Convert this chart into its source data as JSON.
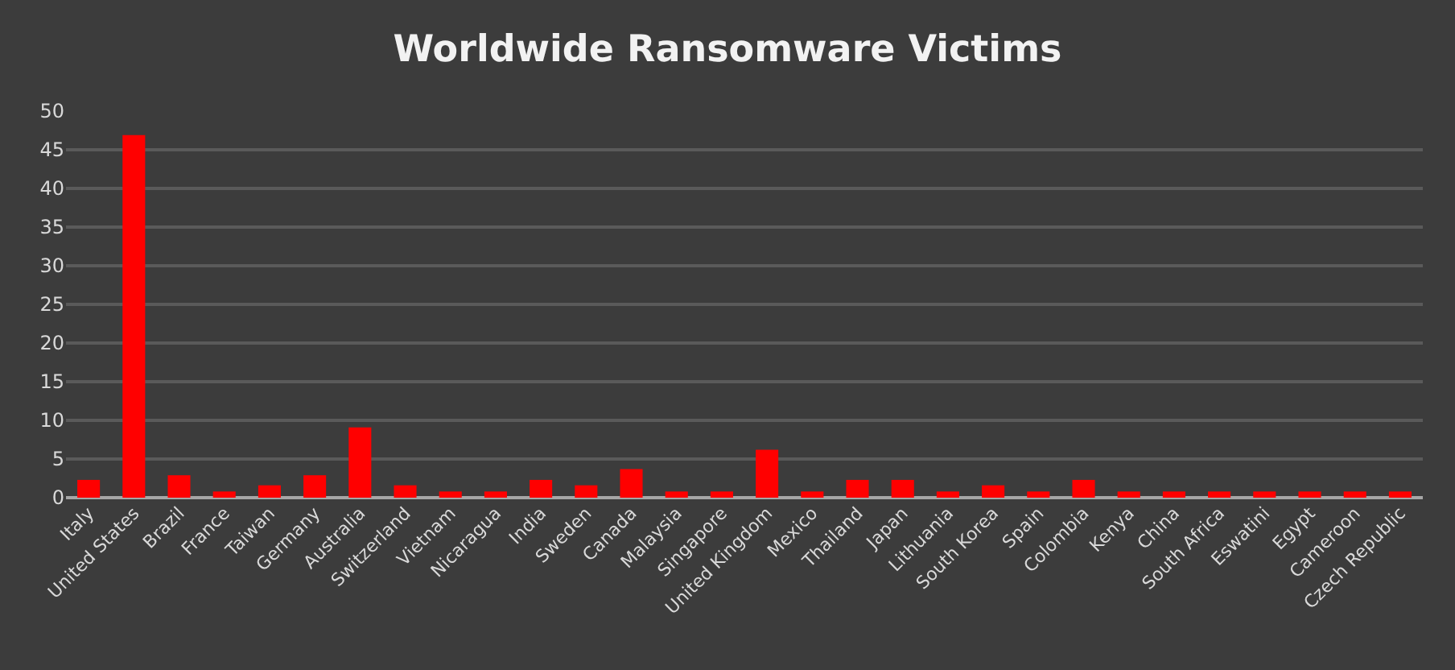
{
  "chart_data": {
    "type": "bar",
    "title": "Worldwide Ransomware Victims",
    "categories": [
      "Italy",
      "United States",
      "Brazil",
      "France",
      "Taiwan",
      "Germany",
      "Australia",
      "Switzerland",
      "Vietnam",
      "Nicaragua",
      "India",
      "Sweden",
      "Canada",
      "Malaysia",
      "Singapore",
      "United Kingdom",
      "Mexico",
      "Thailand",
      "Japan",
      "Lithuania",
      "South Korea",
      "Spain",
      "Colombia",
      "Kenya",
      "China",
      "South Africa",
      "Eswatini",
      "Egypt",
      "Cameroon",
      "Czech Republic"
    ],
    "values": [
      2.3,
      46.9,
      2.9,
      0.8,
      1.6,
      2.9,
      9.1,
      1.6,
      0.8,
      0.8,
      2.3,
      1.6,
      3.7,
      0.8,
      0.8,
      6.2,
      0.8,
      2.3,
      2.3,
      0.8,
      1.6,
      0.8,
      2.3,
      0.8,
      0.8,
      0.8,
      0.8,
      0.8,
      0.8,
      0.8
    ],
    "color": "#ff0000",
    "ylim": [
      0,
      50
    ],
    "yticks": [
      0,
      5,
      10,
      15,
      20,
      25,
      30,
      35,
      40,
      45,
      50
    ],
    "grid": "y"
  }
}
